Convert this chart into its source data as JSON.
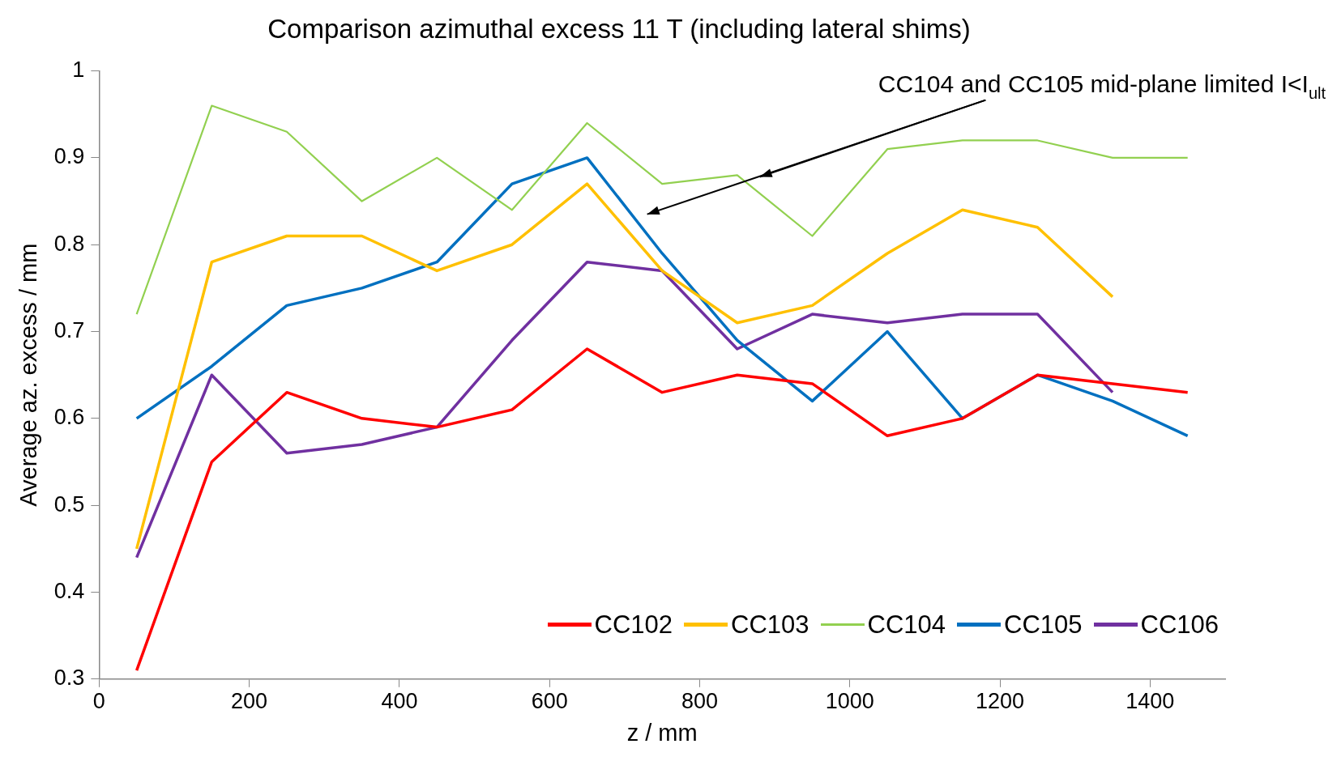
{
  "chart_data": {
    "type": "line",
    "title": "Comparison azimuthal excess 11 T (including lateral shims)",
    "xlabel": "z / mm",
    "ylabel": "Average az. excess / mm",
    "x": [
      50,
      150,
      250,
      350,
      450,
      550,
      650,
      750,
      850,
      950,
      1050,
      1150,
      1250,
      1350,
      1450
    ],
    "series": [
      {
        "name": "CC102",
        "color": "#ff0000",
        "values": [
          0.31,
          0.55,
          0.63,
          0.6,
          0.59,
          0.61,
          0.68,
          0.63,
          0.65,
          0.64,
          0.58,
          0.6,
          0.65,
          0.64,
          0.63
        ]
      },
      {
        "name": "CC103",
        "color": "#ffc000",
        "values": [
          0.45,
          0.78,
          0.81,
          0.81,
          0.77,
          0.8,
          0.87,
          0.77,
          0.71,
          0.73,
          0.79,
          0.84,
          0.82,
          0.74,
          null
        ]
      },
      {
        "name": "CC104",
        "color": "#92d050",
        "values": [
          0.72,
          0.96,
          0.93,
          0.85,
          0.9,
          0.84,
          0.94,
          0.87,
          0.88,
          0.81,
          0.91,
          0.92,
          0.92,
          0.9,
          0.9
        ]
      },
      {
        "name": "CC105",
        "color": "#0070c0",
        "values": [
          0.6,
          0.66,
          0.73,
          0.75,
          0.78,
          0.87,
          0.9,
          0.79,
          0.69,
          0.62,
          0.7,
          0.6,
          0.65,
          0.62,
          0.58
        ]
      },
      {
        "name": "CC106",
        "color": "#7030a0",
        "values": [
          0.44,
          0.65,
          0.56,
          0.57,
          0.59,
          0.69,
          0.78,
          0.77,
          0.68,
          0.72,
          0.71,
          0.72,
          0.72,
          0.63,
          null
        ]
      }
    ],
    "annotations": [
      "CC104 and CC105 mid-plane limited I<I$_{ult}$"
    ],
    "xlim": [
      0,
      1500
    ],
    "xticks": [
      0,
      200,
      400,
      600,
      800,
      1000,
      1200,
      1400
    ],
    "ylim": [
      0.3,
      1
    ],
    "yticks": [
      0.3,
      0.4,
      0.5,
      0.6,
      0.7,
      0.8,
      0.9,
      1
    ],
    "grid": false,
    "legend": "bottom right",
    "marker": "none",
    "line_style": "solid"
  }
}
